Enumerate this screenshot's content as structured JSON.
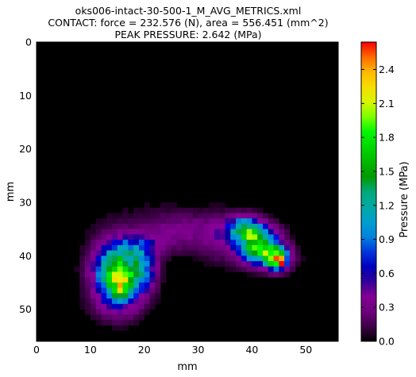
{
  "chart_data": {
    "type": "heatmap",
    "title_lines": [
      "oks006-intact-30-500-1_M_AVG_METRICS.xml",
      "CONTACT: force = 232.576 (N), area = 556.451 (mm^2)",
      "PEAK PRESSURE: 2.642 (MPa)"
    ],
    "xlabel": "mm",
    "ylabel": "mm",
    "colorbar_label": "Pressure (MPa)",
    "xlim": [
      0,
      56
    ],
    "ylim": [
      0,
      56
    ],
    "y_inverted": true,
    "xticks": [
      "0",
      "10",
      "20",
      "30",
      "40",
      "50"
    ],
    "yticks": [
      "0",
      "10",
      "20",
      "30",
      "40",
      "50"
    ],
    "colorbar_range": [
      0.0,
      2.642
    ],
    "colorbar_ticks": [
      "0.0",
      "0.3",
      "0.6",
      "0.9",
      "1.2",
      "1.5",
      "1.8",
      "2.1",
      "2.4"
    ],
    "colormap": "nipy_spectral",
    "peak_pressure": 2.642,
    "grid": false,
    "blobs": [
      {
        "cx": 15.3,
        "cy": 43.3,
        "sx": 2.9,
        "sy": 3.8,
        "amp": 1.85
      },
      {
        "cx": 15.6,
        "cy": 45.5,
        "sx": 1.0,
        "sy": 1.4,
        "amp": 0.75
      },
      {
        "cx": 20.0,
        "cy": 42.5,
        "sx": 1.6,
        "sy": 2.8,
        "amp": 0.55
      },
      {
        "cx": 19.5,
        "cy": 38.3,
        "sx": 2.8,
        "sy": 1.4,
        "amp": 0.35
      },
      {
        "cx": 26.5,
        "cy": 35.5,
        "sx": 5.0,
        "sy": 2.4,
        "amp": 0.3
      },
      {
        "cx": 34.0,
        "cy": 36.5,
        "sx": 2.4,
        "sy": 2.8,
        "amp": 0.28
      },
      {
        "cx": 38.5,
        "cy": 35.0,
        "sx": 2.0,
        "sy": 1.6,
        "amp": 1.15
      },
      {
        "cx": 41.2,
        "cy": 37.8,
        "sx": 2.6,
        "sy": 2.2,
        "amp": 1.55
      },
      {
        "cx": 44.5,
        "cy": 40.5,
        "sx": 1.4,
        "sy": 1.4,
        "amp": 1.9
      },
      {
        "cx": 45.0,
        "cy": 41.0,
        "sx": 0.6,
        "sy": 0.6,
        "amp": 0.7
      },
      {
        "cx": 42.8,
        "cy": 40.2,
        "sx": 3.5,
        "sy": 1.5,
        "amp": 0.35
      },
      {
        "cx": 14.5,
        "cy": 49.5,
        "sx": 3.0,
        "sy": 2.0,
        "amp": 0.15
      },
      {
        "cx": 18.0,
        "cy": 32.0,
        "sx": 12.0,
        "sy": 8.0,
        "amp": 0.04
      }
    ]
  }
}
